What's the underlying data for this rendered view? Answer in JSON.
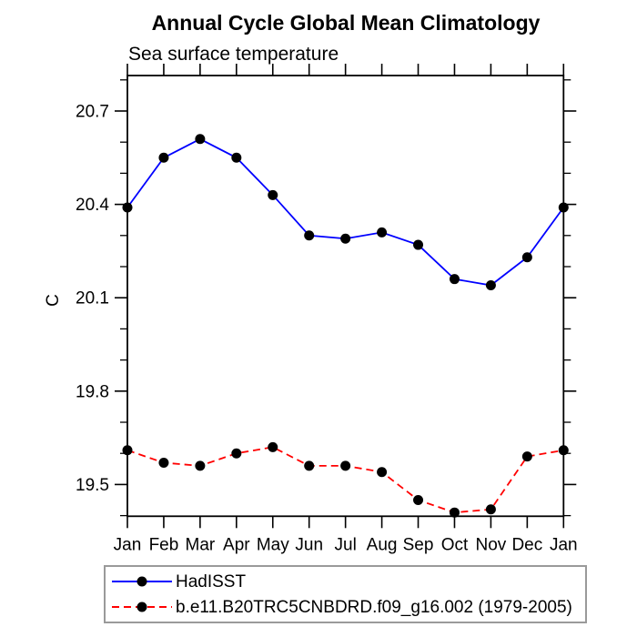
{
  "chart_data": {
    "type": "line",
    "title": "Annual Cycle Global Mean Climatology",
    "subtitle": "Sea surface temperature",
    "xlabel": "",
    "ylabel": "C",
    "categories": [
      "Jan",
      "Feb",
      "Mar",
      "Apr",
      "May",
      "Jun",
      "Jul",
      "Aug",
      "Sep",
      "Oct",
      "Nov",
      "Dec",
      "Jan"
    ],
    "ylim": [
      19.4,
      20.81
    ],
    "yticks_major": [
      19.5,
      19.8,
      20.1,
      20.4,
      20.7
    ],
    "ytick_labels": [
      "19.5",
      "19.8",
      "20.1",
      "20.4",
      "20.7"
    ],
    "minor_tick_step": 0.1,
    "grid": false,
    "legend_position": "bottom-left-box",
    "series": [
      {
        "name": "HadISST",
        "color": "#0000ff",
        "style": "solid",
        "marker": "filled-circle",
        "marker_color": "#000000",
        "values": [
          20.39,
          20.55,
          20.61,
          20.55,
          20.43,
          20.3,
          20.29,
          20.31,
          20.27,
          20.16,
          20.14,
          20.23,
          20.39
        ]
      },
      {
        "name": "b.e11.B20TRC5CNBDRD.f09_g16.002 (1979-2005)",
        "color": "#ff0000",
        "style": "dashed",
        "marker": "filled-circle",
        "marker_color": "#000000",
        "values": [
          19.61,
          19.57,
          19.56,
          19.6,
          19.62,
          19.56,
          19.56,
          19.54,
          19.45,
          19.41,
          19.42,
          19.59,
          19.61
        ]
      }
    ]
  },
  "colors": {
    "axis": "#000000",
    "text": "#000000",
    "legend_border": "#9a9a9a",
    "background": "#ffffff"
  }
}
